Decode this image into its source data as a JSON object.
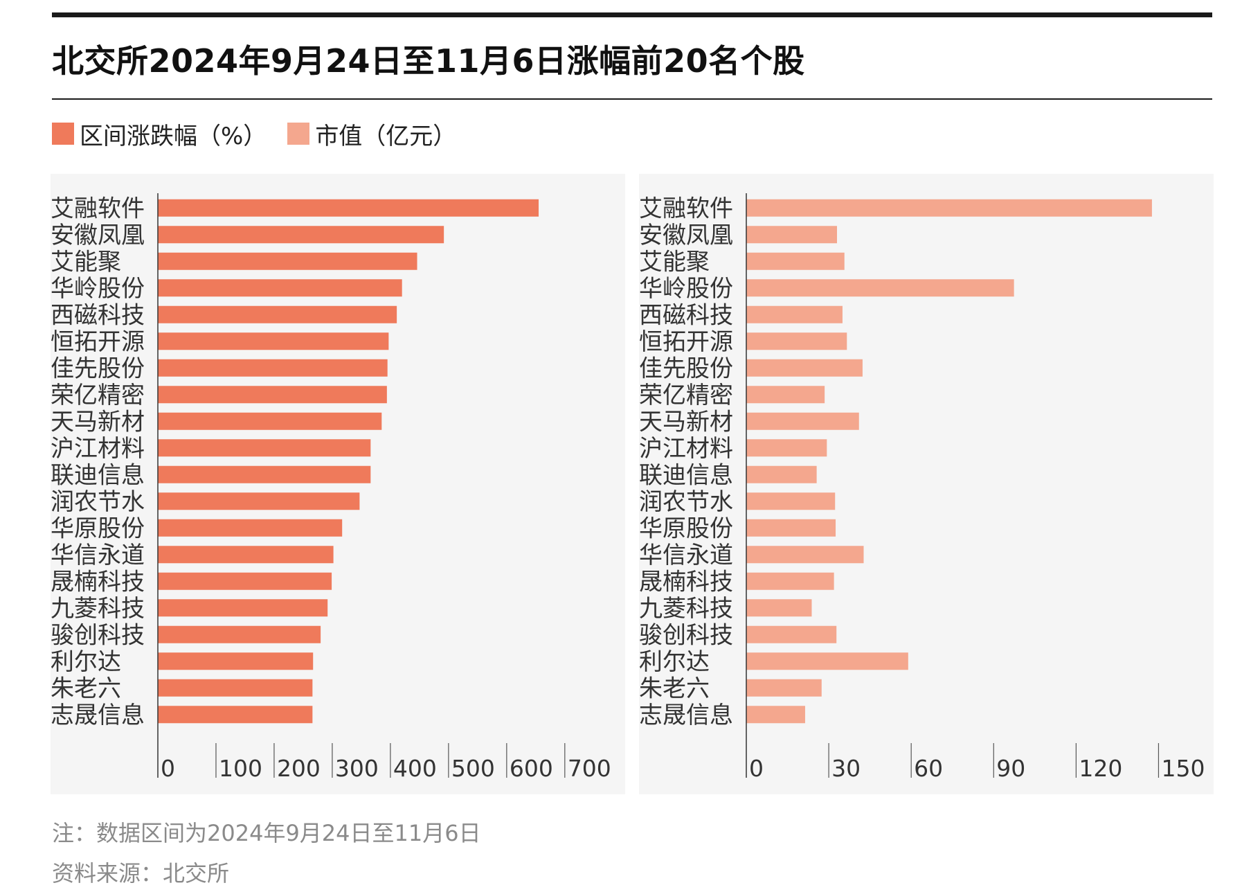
{
  "header": {
    "title": "北交所2024年9月24日至11月6日涨幅前20名个股"
  },
  "legend": [
    {
      "label": "区间涨跌幅（%）",
      "color": "#ef7a5b"
    },
    {
      "label": "市值（亿元）",
      "color": "#f4a78e"
    }
  ],
  "chart_data": [
    {
      "type": "bar",
      "orientation": "horizontal",
      "series_name": "区间涨跌幅（%）",
      "color": "#ef7a5b",
      "categories": [
        "艾融软件",
        "安徽凤凰",
        "艾能聚",
        "华岭股份",
        "西磁科技",
        "恒拓开源",
        "佳先股份",
        "荣亿精密",
        "天马新材",
        "沪江材料",
        "联迪信息",
        "润农节水",
        "华原股份",
        "华信永道",
        "晟楠科技",
        "九菱科技",
        "骏创科技",
        "利尔达",
        "朱老六",
        "志晟信息"
      ],
      "values": [
        655,
        492,
        446,
        420,
        411,
        397,
        395,
        394,
        385,
        366,
        366,
        347,
        317,
        302,
        299,
        292,
        280,
        267,
        266,
        266
      ],
      "xlim": [
        0,
        780
      ],
      "ticks": [
        {
          "value": 0,
          "label": "0"
        },
        {
          "value": 100,
          "label": "100"
        },
        {
          "value": 200,
          "label": "200"
        },
        {
          "value": 300,
          "label": "300"
        },
        {
          "value": 400,
          "label": "400"
        },
        {
          "value": 500,
          "label": "500"
        },
        {
          "value": 600,
          "label": "600"
        },
        {
          "value": 700,
          "label": "700"
        }
      ],
      "grid": false
    },
    {
      "type": "bar",
      "orientation": "horizontal",
      "series_name": "市值（亿元）",
      "color": "#f4a78e",
      "categories": [
        "艾融软件",
        "安徽凤凰",
        "艾能聚",
        "华岭股份",
        "西磁科技",
        "恒拓开源",
        "佳先股份",
        "荣亿精密",
        "天马新材",
        "沪江材料",
        "联迪信息",
        "润农节水",
        "华原股份",
        "华信永道",
        "晟楠科技",
        "九菱科技",
        "骏创科技",
        "利尔达",
        "朱老六",
        "志晟信息"
      ],
      "values": [
        147.6,
        33.0,
        35.7,
        97.4,
        35.0,
        36.6,
        42.3,
        28.5,
        41.0,
        29.3,
        25.6,
        32.3,
        32.5,
        42.7,
        31.9,
        23.8,
        32.8,
        58.9,
        27.4,
        21.4
      ],
      "xlim": [
        0,
        165
      ],
      "ticks": [
        {
          "value": 0,
          "label": "0"
        },
        {
          "value": 30,
          "label": "30"
        },
        {
          "value": 60,
          "label": "60"
        },
        {
          "value": 90,
          "label": "90"
        },
        {
          "value": 120,
          "label": "120"
        },
        {
          "value": 150,
          "label": "150"
        }
      ],
      "grid": false
    }
  ],
  "notes": {
    "note": "注：数据区间为2024年9月24日至11月6日",
    "source": "资料来源：北交所"
  }
}
